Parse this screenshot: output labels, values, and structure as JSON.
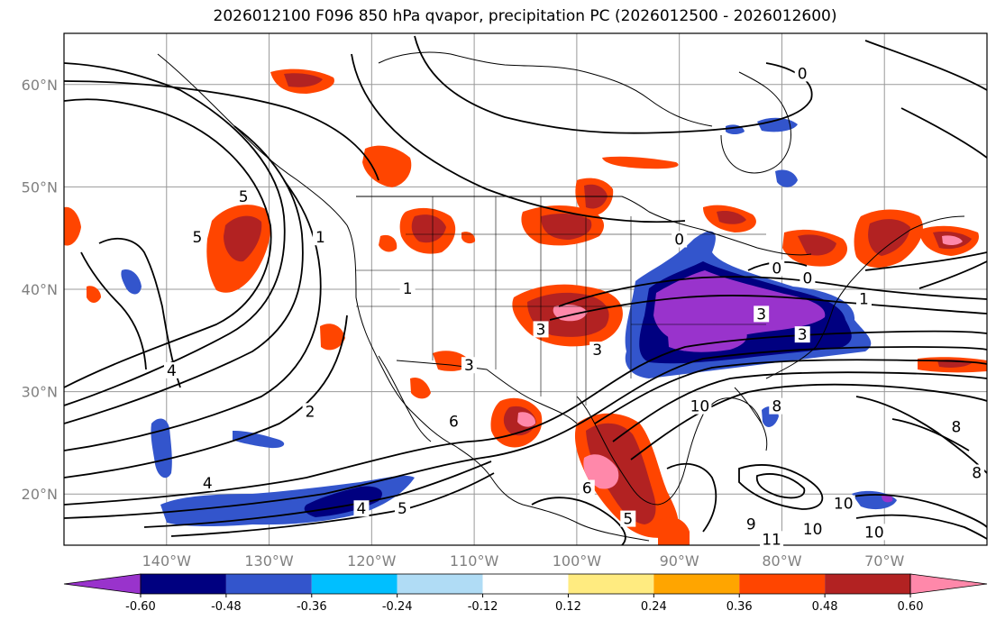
{
  "title": "2026012100 F096 850 hPa qvapor, precipitation PC (2026012500 - 2026012600)",
  "map": {
    "projection": "cylindrical",
    "lon_range": [
      -150,
      -60
    ],
    "lat_range": [
      15,
      65
    ],
    "lat_ticks": [
      {
        "value": 20,
        "label": "20°N"
      },
      {
        "value": 30,
        "label": "30°N"
      },
      {
        "value": 40,
        "label": "40°N"
      },
      {
        "value": 50,
        "label": "50°N"
      },
      {
        "value": 60,
        "label": "60°N"
      }
    ],
    "lon_ticks": [
      {
        "value": -140,
        "label": "140°W"
      },
      {
        "value": -130,
        "label": "130°W"
      },
      {
        "value": -120,
        "label": "120°W"
      },
      {
        "value": -110,
        "label": "110°W"
      },
      {
        "value": -100,
        "label": "100°W"
      },
      {
        "value": -90,
        "label": "90°W"
      },
      {
        "value": -80,
        "label": "80°W"
      },
      {
        "value": -70,
        "label": "70°W"
      }
    ],
    "grid": true,
    "contour_labels": [
      {
        "lon": -139.5,
        "lat": 32,
        "text": "4"
      },
      {
        "lon": -136,
        "lat": 21,
        "text": "4"
      },
      {
        "lon": -137,
        "lat": 45,
        "text": "5"
      },
      {
        "lon": -132.5,
        "lat": 49,
        "text": "5"
      },
      {
        "lon": -125,
        "lat": 45,
        "text": "1"
      },
      {
        "lon": -126,
        "lat": 28,
        "text": "2"
      },
      {
        "lon": -121,
        "lat": 18.5,
        "text": "4"
      },
      {
        "lon": -117,
        "lat": 18.5,
        "text": "5"
      },
      {
        "lon": -116.5,
        "lat": 40,
        "text": "1"
      },
      {
        "lon": -112,
        "lat": 27,
        "text": "6"
      },
      {
        "lon": -110.5,
        "lat": 32.5,
        "text": "3"
      },
      {
        "lon": -103.5,
        "lat": 36,
        "text": "3"
      },
      {
        "lon": -98,
        "lat": 34,
        "text": "3"
      },
      {
        "lon": -88,
        "lat": 28.5,
        "text": "10"
      },
      {
        "lon": -82,
        "lat": 37.5,
        "text": "3"
      },
      {
        "lon": -78,
        "lat": 35.5,
        "text": "3"
      },
      {
        "lon": -80.5,
        "lat": 42,
        "text": "0"
      },
      {
        "lon": -77.5,
        "lat": 41,
        "text": "0"
      },
      {
        "lon": -72,
        "lat": 39,
        "text": "1"
      },
      {
        "lon": -63,
        "lat": 26.5,
        "text": "8"
      },
      {
        "lon": -61,
        "lat": 22,
        "text": "8"
      },
      {
        "lon": -80.5,
        "lat": 28.5,
        "text": "8"
      },
      {
        "lon": -83,
        "lat": 17,
        "text": "9"
      },
      {
        "lon": -81,
        "lat": 15.5,
        "text": "11"
      },
      {
        "lon": -77,
        "lat": 16.5,
        "text": "10"
      },
      {
        "lon": -74,
        "lat": 19,
        "text": "10"
      },
      {
        "lon": -71,
        "lat": 16.2,
        "text": "10"
      },
      {
        "lon": -95,
        "lat": 17.5,
        "text": "5"
      },
      {
        "lon": -99,
        "lat": 20.5,
        "text": "6"
      },
      {
        "lon": -78,
        "lat": 61,
        "text": "0"
      },
      {
        "lon": -90,
        "lat": 44.8,
        "text": "0"
      }
    ]
  },
  "colorbar": {
    "colors": [
      "#9933cc",
      "#000080",
      "#3355cc",
      "#00bfff",
      "#b0dcf5",
      "#ffffff",
      "#ffeb80",
      "#ffa500",
      "#ff4500",
      "#b22222",
      "#ff88aa"
    ],
    "labels": [
      "-0.60",
      "-0.48",
      "-0.36",
      "-0.24",
      "-0.12",
      "0.12",
      "0.24",
      "0.36",
      "0.48",
      "0.60"
    ]
  }
}
